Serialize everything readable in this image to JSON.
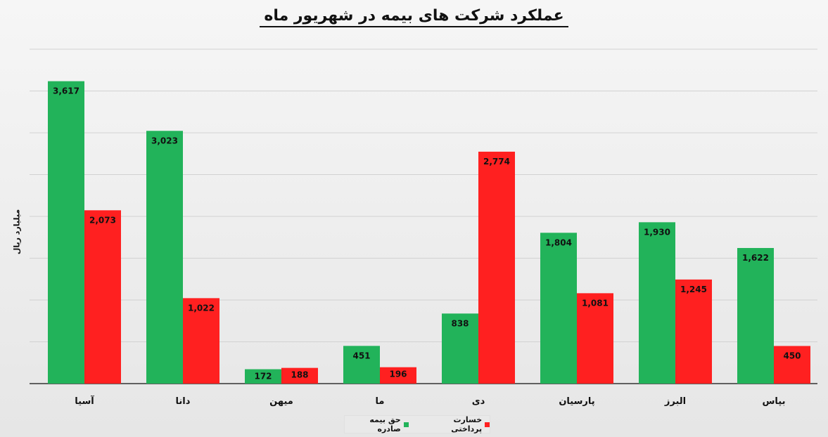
{
  "chart_data": {
    "type": "bar",
    "title": "عملکرد شرکت های بیمه در شهریور ماه",
    "ylabel": "میلیارد ریال",
    "xlabel": "",
    "categories": [
      "آسیا",
      "دانا",
      "میهن",
      "ما",
      "دی",
      "پارسیان",
      "البرز",
      "بپاس"
    ],
    "series": [
      {
        "name": "حق بیمه صادره",
        "color": "#22b35a",
        "values": [
          3617,
          3023,
          172,
          451,
          838,
          1804,
          1930,
          1622
        ]
      },
      {
        "name": "خسارت پرداختی",
        "color": "#ff2020",
        "values": [
          2073,
          1022,
          188,
          196,
          2774,
          1081,
          1245,
          450
        ]
      }
    ],
    "value_labels": [
      [
        "3,617",
        "3,023",
        "172",
        "451",
        "838",
        "1,804",
        "1,930",
        "1,622"
      ],
      [
        "2,073",
        "1,022",
        "188",
        "196",
        "2,774",
        "1,081",
        "1,245",
        "450"
      ]
    ],
    "ylim": [
      0,
      4000
    ],
    "grid": true,
    "legend_position": "bottom"
  }
}
